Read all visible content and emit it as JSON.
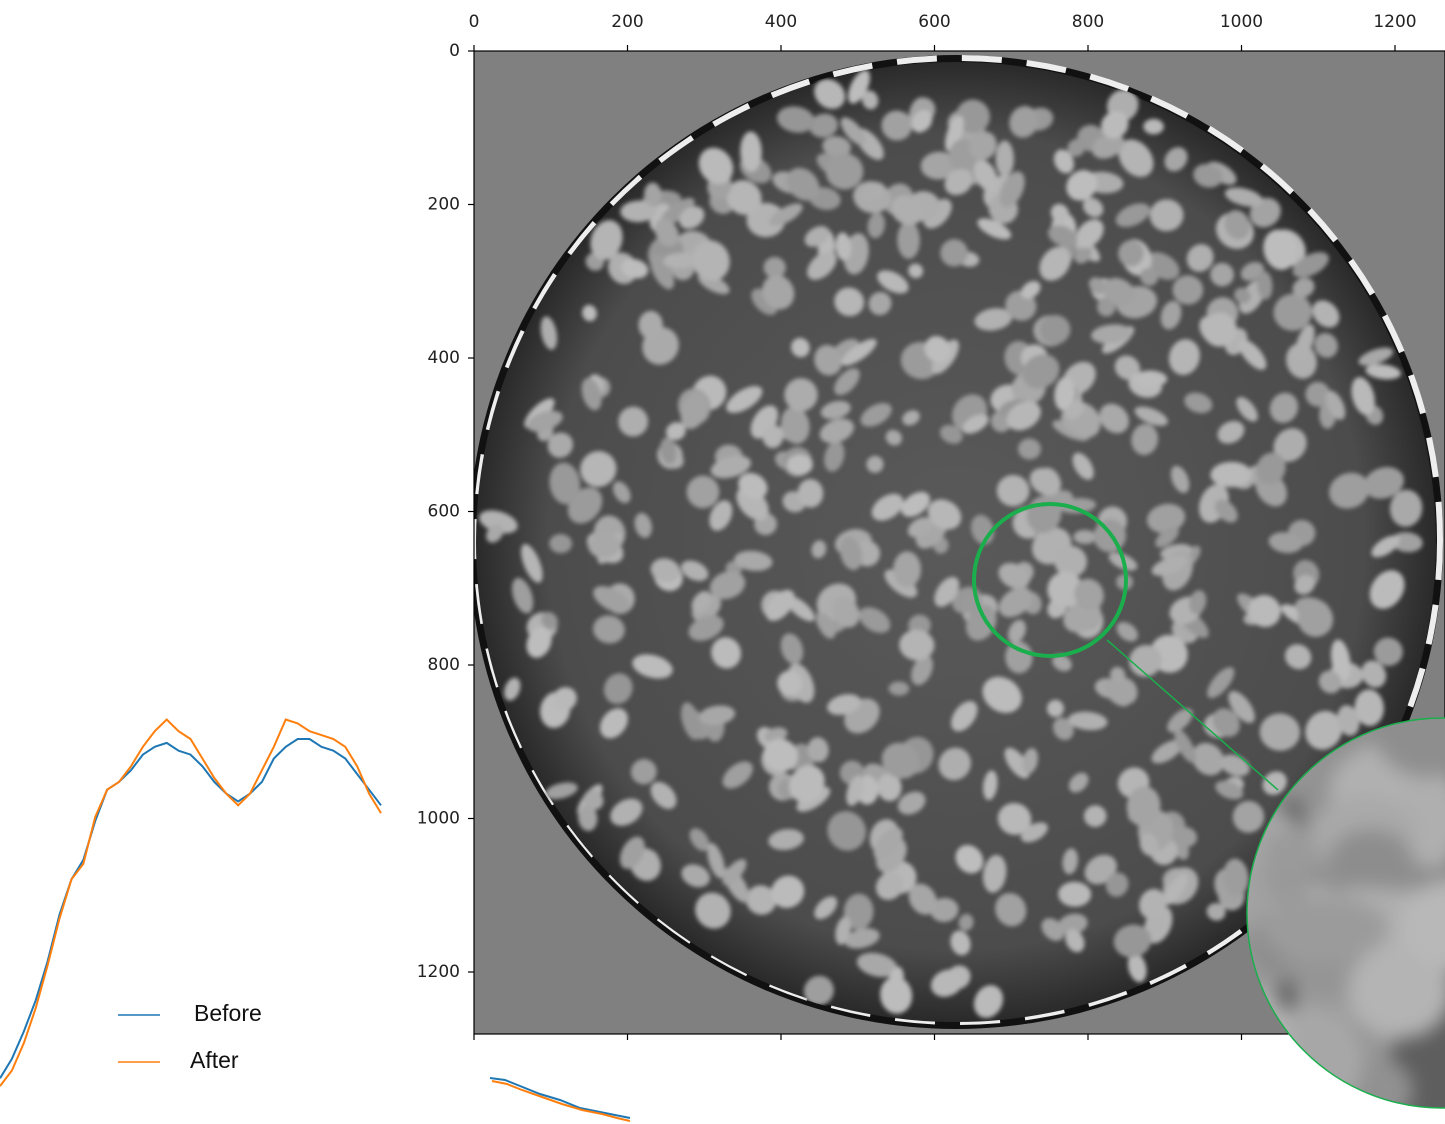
{
  "chart_data": [
    {
      "type": "image",
      "xlim": [
        0,
        1280
      ],
      "ylim": [
        1280,
        0
      ],
      "xticks": [
        0,
        200,
        400,
        600,
        800,
        1000,
        1200
      ],
      "yticks": [
        0,
        200,
        400,
        600,
        800,
        1000,
        1200
      ]
    },
    {
      "type": "line",
      "ylim": [
        0,
        1
      ],
      "series": [
        {
          "name": "Before",
          "color": "#1f77b4",
          "values": [
            0.03,
            0.08,
            0.15,
            0.23,
            0.33,
            0.45,
            0.54,
            0.59,
            0.69,
            0.77,
            0.79,
            0.82,
            0.86,
            0.88,
            0.89,
            0.87,
            0.86,
            0.83,
            0.79,
            0.76,
            0.74,
            0.76,
            0.79,
            0.85,
            0.88,
            0.9,
            0.9,
            0.88,
            0.87,
            0.85,
            0.81,
            0.77,
            0.73
          ]
        },
        {
          "name": "After",
          "color": "#ff7f0e",
          "values": [
            0.01,
            0.05,
            0.12,
            0.21,
            0.32,
            0.44,
            0.54,
            0.58,
            0.7,
            0.77,
            0.79,
            0.83,
            0.88,
            0.92,
            0.95,
            0.92,
            0.9,
            0.85,
            0.8,
            0.76,
            0.73,
            0.76,
            0.82,
            0.88,
            0.95,
            0.94,
            0.92,
            0.91,
            0.9,
            0.88,
            0.83,
            0.76,
            0.71
          ]
        }
      ]
    }
  ]
}
